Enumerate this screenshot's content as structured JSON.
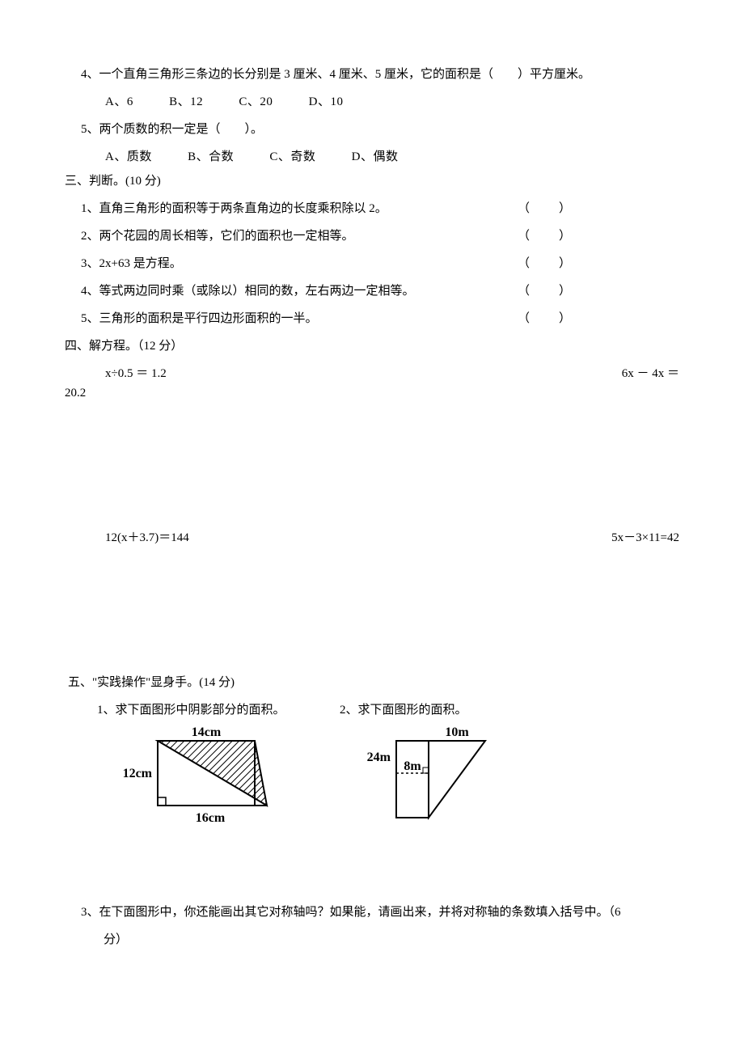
{
  "q4": {
    "text": "4、一个直角三角形三条边的长分别是 3 厘米、4 厘米、5 厘米，它的面积是（　　）平方厘米。",
    "opts": {
      "a": "A、6",
      "b": "B、12",
      "c": "C、20",
      "d": "D、10"
    }
  },
  "q5": {
    "text": "5、两个质数的积一定是（　　）。",
    "opts": {
      "a": "A、质数",
      "b": "B、合数",
      "c": "C、奇数",
      "d": "D、偶数"
    }
  },
  "sec3": {
    "title": "三、判断。(10 分)",
    "items": [
      {
        "t": "1、直角三角形的面积等于两条直角边的长度乘积除以 2。",
        "p": "（　　）"
      },
      {
        "t": "2、两个花园的周长相等，它们的面积也一定相等。",
        "p": "（　　）"
      },
      {
        "t": "3、2x+63 是方程。",
        "p": "（　　）"
      },
      {
        "t": "4、等式两边同时乘（或除以）相同的数，左右两边一定相等。",
        "p": "（　　）"
      },
      {
        "t": "5、三角形的面积是平行四边形面积的一半。",
        "p": "（　　）"
      }
    ]
  },
  "sec4": {
    "title": "四、解方程。（12 分）",
    "eq1": "x÷0.5 ＝ 1.2",
    "eq2": "6x － 4x ＝",
    "eq2b": "20.2",
    "eq3": "12(x＋3.7)＝144",
    "eq4": "5x－3×11=42"
  },
  "sec5": {
    "title": "五、\"实践操作\"显身手。(14 分)",
    "p1": "1、求下面图形中阴影部分的面积。",
    "p2": "2、求下面图形的面积。",
    "p3": "3、在下面图形中，你还能画出其它对称轴吗？如果能，请画出来，并将对称轴的条数填入括号中。（6",
    "p3b": "分）",
    "fig1": {
      "top": "14cm",
      "left": "12cm",
      "bottom": "16cm"
    },
    "fig2": {
      "top": "10m",
      "left": "24m",
      "mid": "8m"
    }
  },
  "colors": {
    "stroke": "#000000",
    "hatch": "#000000",
    "bg": "#ffffff"
  }
}
